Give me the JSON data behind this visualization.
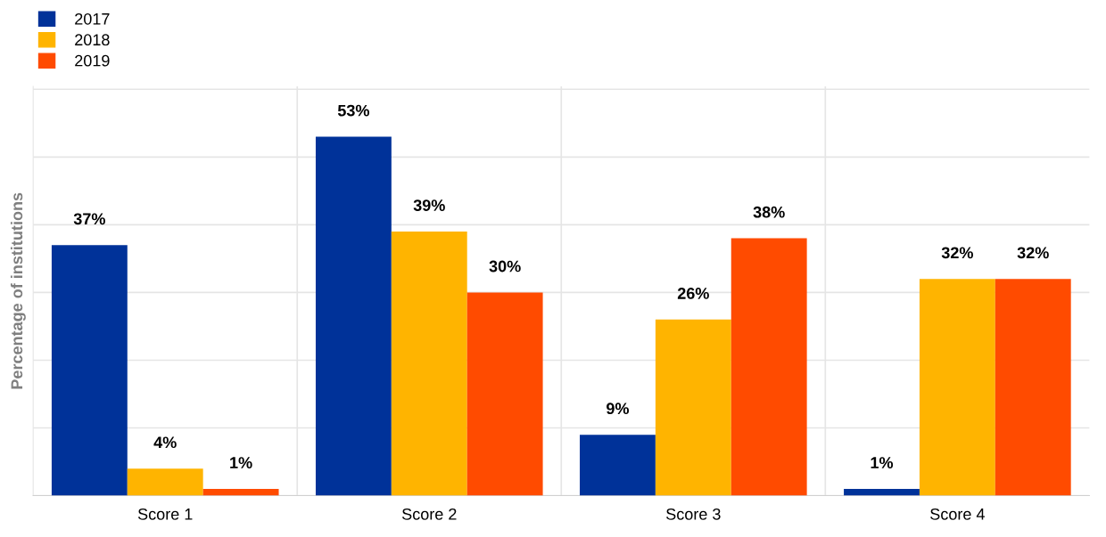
{
  "chart_data": {
    "type": "bar",
    "ylabel": "Percentage of institutions",
    "categories": [
      "Score 1",
      "Score 2",
      "Score 3",
      "Score 4"
    ],
    "series": [
      {
        "name": "2017",
        "color": "#003299",
        "values": [
          37,
          53,
          9,
          1
        ],
        "value_labels": [
          "37%",
          "53%",
          "9%",
          "1%"
        ]
      },
      {
        "name": "2018",
        "color": "#ffb400",
        "values": [
          4,
          39,
          26,
          32
        ],
        "value_labels": [
          "4%",
          "39%",
          "26%",
          "32%"
        ]
      },
      {
        "name": "2019",
        "color": "#ff4b00",
        "values": [
          1,
          30,
          38,
          32
        ],
        "value_labels": [
          "1%",
          "30%",
          "38%",
          "32%"
        ]
      }
    ],
    "tick_labels": "x",
    "grid": true,
    "legend": "top left"
  }
}
